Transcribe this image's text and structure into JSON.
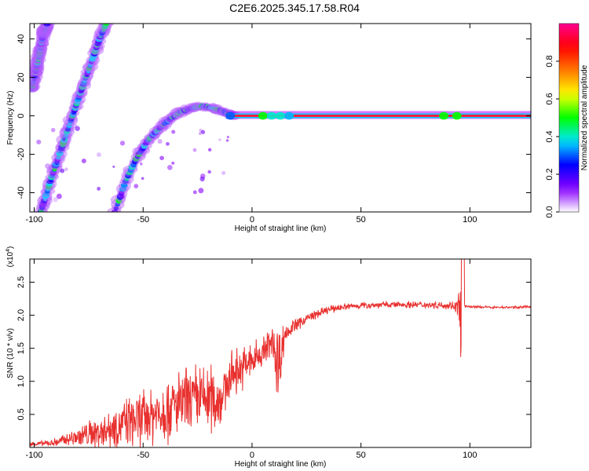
{
  "title": "C2E6.2025.345.17.58.R04",
  "colors": {
    "snr_line": "#e8312f",
    "background": "#ffffff",
    "spectral_band": "#ff1e3c",
    "colormap": [
      "#ffffff",
      "#8a00ff",
      "#0000ff",
      "#00e5ff",
      "#00ff00",
      "#ffff00",
      "#ff7a00",
      "#ff0000",
      "#ff0090"
    ]
  },
  "chart_data": [
    {
      "type": "heatmap",
      "title": "",
      "xlabel": "Height of straight line (km)",
      "ylabel": "Frequency (Hz)",
      "xlim": [
        -102,
        128
      ],
      "ylim": [
        -50,
        48
      ],
      "x_ticks": [
        -100,
        -50,
        0,
        50,
        100
      ],
      "x_tick_labels": [
        "-100",
        "-50",
        "0",
        "50",
        "100"
      ],
      "y_ticks": [
        -40,
        -20,
        0,
        20,
        40
      ],
      "y_tick_labels": [
        "-40",
        "-20",
        "0",
        "20",
        "40"
      ],
      "colorbar": {
        "label": "Normalized spectral amplitude",
        "range": [
          0,
          1
        ],
        "ticks": [
          0,
          0.2,
          0.4,
          0.6,
          0.8
        ],
        "tick_labels": [
          "0.0",
          "0.2",
          "0.4",
          "0.6",
          "0.8"
        ]
      },
      "features": [
        {
          "name": "steep trace 1",
          "x": [
            -101,
            -98,
            -96,
            -94
          ],
          "y": [
            14,
            30,
            42,
            48
          ],
          "amplitude": 0.35
        },
        {
          "name": "steep trace 2",
          "x": [
            -97,
            -92,
            -86,
            -80,
            -75,
            -70,
            -67
          ],
          "y": [
            -50,
            -32,
            -12,
            8,
            24,
            40,
            48
          ],
          "amplitude": 0.35
        },
        {
          "name": "curved branch",
          "x": [
            -63,
            -58,
            -53,
            -48,
            -43,
            -38,
            -33,
            -28,
            -23,
            -18,
            -13,
            -8
          ],
          "y": [
            -50,
            -34,
            -22,
            -13,
            -7,
            -2,
            2,
            4,
            5,
            4,
            2,
            0
          ],
          "amplitude": 0.3
        },
        {
          "name": "carrier line",
          "x": [
            -12,
            128
          ],
          "y": [
            0,
            0
          ],
          "amplitude": 0.95
        }
      ]
    },
    {
      "type": "line",
      "title": "",
      "xlabel": "Height of straight line (km)",
      "ylabel": "SNR (10 * v/v)",
      "y_multiplier": "(x10^4)",
      "y_multiplier_base": "(x10",
      "y_multiplier_exp": "4",
      "y_multiplier_close": ")",
      "xlim": [
        -102,
        128
      ],
      "ylim": [
        0,
        2.85
      ],
      "x_ticks": [
        -100,
        -50,
        0,
        50,
        100
      ],
      "x_tick_labels": [
        "-100",
        "-50",
        "0",
        "50",
        "100"
      ],
      "y_ticks": [
        0.5,
        1.0,
        1.5,
        2.0,
        2.5
      ],
      "y_tick_labels": [
        "0.5",
        "1.0",
        "1.5",
        "2.0",
        "2.5"
      ],
      "series": [
        {
          "x": [
            -102,
            -95,
            -90,
            -85,
            -80,
            -75,
            -70,
            -65,
            -60,
            -55,
            -50,
            -45,
            -40,
            -35,
            -30,
            -25,
            -20,
            -15,
            -12,
            -10,
            -5,
            0,
            5,
            10,
            12,
            15,
            20,
            25,
            30,
            35,
            40,
            50,
            60,
            70,
            80,
            90,
            94,
            96,
            97,
            100,
            110,
            120,
            128
          ],
          "mid": [
            0.05,
            0.06,
            0.08,
            0.12,
            0.16,
            0.2,
            0.24,
            0.3,
            0.35,
            0.4,
            0.45,
            0.5,
            0.58,
            0.62,
            0.68,
            0.72,
            0.75,
            0.72,
            0.9,
            1.1,
            1.2,
            1.3,
            1.45,
            1.6,
            1.2,
            1.72,
            1.85,
            1.95,
            2.02,
            2.08,
            2.12,
            2.15,
            2.16,
            2.16,
            2.16,
            2.15,
            2.14,
            2.0,
            2.14,
            2.13,
            2.12,
            2.12,
            2.13
          ],
          "amp": [
            0.04,
            0.05,
            0.08,
            0.12,
            0.18,
            0.25,
            0.3,
            0.35,
            0.4,
            0.45,
            0.5,
            0.55,
            0.6,
            0.6,
            0.62,
            0.65,
            0.65,
            0.55,
            0.4,
            0.4,
            0.4,
            0.35,
            0.3,
            0.35,
            0.9,
            0.15,
            0.12,
            0.1,
            0.08,
            0.07,
            0.06,
            0.06,
            0.06,
            0.06,
            0.06,
            0.07,
            0.1,
            0.9,
            0.03,
            0.02,
            0.02,
            0.02,
            0.02
          ]
        }
      ]
    }
  ]
}
